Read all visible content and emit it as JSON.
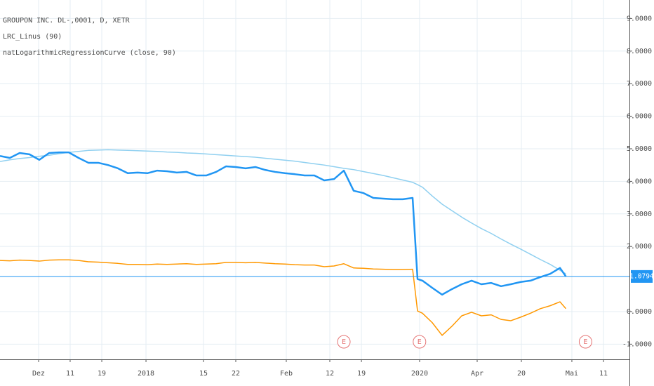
{
  "chart_data": {
    "type": "line",
    "title": "GROUPON INC. DL-,0001, D, XETR",
    "indicators": [
      "LRC_Linus (90)",
      "natLogarithmicRegressionCurve (close, 90)"
    ],
    "x": [
      0,
      1,
      2,
      3,
      4,
      5,
      6,
      7,
      8,
      9,
      10,
      11,
      12,
      13,
      14,
      15,
      16,
      17,
      18,
      19,
      20,
      21,
      22,
      23,
      24,
      25,
      26,
      27,
      28,
      29,
      30,
      31,
      32,
      33,
      34,
      35,
      36,
      37,
      38,
      39,
      40,
      41,
      42,
      42.5,
      43,
      44,
      45,
      46,
      47,
      48,
      49,
      50,
      51,
      52,
      53,
      54,
      55,
      56,
      57,
      57.6
    ],
    "series": [
      {
        "color": "#90d0f0",
        "width": 1.5,
        "values": [
          4.61,
          4.66,
          4.7,
          4.73,
          4.77,
          4.8,
          4.85,
          4.89,
          4.92,
          4.95,
          4.96,
          4.97,
          4.96,
          4.95,
          4.94,
          4.93,
          4.92,
          4.9,
          4.89,
          4.87,
          4.86,
          4.84,
          4.82,
          4.8,
          4.78,
          4.76,
          4.74,
          4.71,
          4.68,
          4.65,
          4.62,
          4.58,
          4.54,
          4.5,
          4.45,
          4.4,
          4.36,
          4.3,
          4.24,
          4.18,
          4.11,
          4.04,
          3.97,
          3.9,
          3.82,
          3.55,
          3.3,
          3.1,
          2.9,
          2.72,
          2.55,
          2.4,
          2.23,
          2.07,
          1.92,
          1.76,
          1.6,
          1.45,
          1.27,
          1.16
        ]
      },
      {
        "color": "#ff9800",
        "width": 1.5,
        "values": [
          1.57,
          1.56,
          1.58,
          1.57,
          1.55,
          1.58,
          1.59,
          1.59,
          1.57,
          1.53,
          1.52,
          1.5,
          1.48,
          1.45,
          1.45,
          1.44,
          1.46,
          1.45,
          1.46,
          1.47,
          1.45,
          1.46,
          1.47,
          1.51,
          1.51,
          1.5,
          1.51,
          1.49,
          1.47,
          1.46,
          1.44,
          1.43,
          1.43,
          1.38,
          1.4,
          1.47,
          1.34,
          1.33,
          1.31,
          1.3,
          1.29,
          1.29,
          1.3,
          0.02,
          -0.05,
          -0.34,
          -0.73,
          -0.45,
          -0.13,
          -0.02,
          -0.13,
          -0.1,
          -0.24,
          -0.28,
          -0.17,
          -0.05,
          0.09,
          0.18,
          0.3,
          0.09
        ]
      },
      {
        "color": "#2196f3",
        "width": 2.5,
        "values": [
          4.78,
          4.72,
          4.87,
          4.83,
          4.66,
          4.87,
          4.89,
          4.89,
          4.72,
          4.57,
          4.57,
          4.5,
          4.4,
          4.25,
          4.27,
          4.25,
          4.33,
          4.31,
          4.27,
          4.29,
          4.18,
          4.18,
          4.29,
          4.46,
          4.44,
          4.4,
          4.44,
          4.35,
          4.29,
          4.25,
          4.22,
          4.18,
          4.18,
          4.03,
          4.07,
          4.33,
          3.71,
          3.64,
          3.49,
          3.47,
          3.45,
          3.45,
          3.49,
          1.0,
          0.95,
          0.73,
          0.52,
          0.69,
          0.84,
          0.95,
          0.84,
          0.88,
          0.78,
          0.84,
          0.91,
          0.95,
          1.06,
          1.16,
          1.34,
          1.08
        ]
      }
    ],
    "last_value": 1.0794,
    "last_color": "#2196f3",
    "earnings": [
      {
        "label": "E",
        "x": 35
      },
      {
        "label": "E",
        "x": 42.7
      },
      {
        "label": "E",
        "x": 59.6
      }
    ],
    "xlim": [
      0,
      64.07
    ],
    "ylim": [
      -1.466,
      9.569
    ],
    "yticks": [
      {
        "value": -1,
        "label": "-1.0000"
      },
      {
        "value": 0,
        "label": "0.0000"
      },
      {
        "value": 2,
        "label": "2.0000"
      },
      {
        "value": 3,
        "label": "3.0000"
      },
      {
        "value": 4,
        "label": "4.0000"
      },
      {
        "value": 5,
        "label": "5.0000"
      },
      {
        "value": 6,
        "label": "6.0000"
      },
      {
        "value": 7,
        "label": "7.0000"
      },
      {
        "value": 8,
        "label": "8.0000"
      },
      {
        "value": 9,
        "label": "9.0000"
      }
    ],
    "xticks": [
      {
        "value": 3.93,
        "label": "Dez"
      },
      {
        "value": 7.14,
        "label": "11"
      },
      {
        "value": 10.36,
        "label": "19"
      },
      {
        "value": 14.86,
        "label": "2018"
      },
      {
        "value": 20.71,
        "label": "15"
      },
      {
        "value": 24,
        "label": "22"
      },
      {
        "value": 29.14,
        "label": "Feb"
      },
      {
        "value": 33.57,
        "label": "12"
      },
      {
        "value": 36.79,
        "label": "19"
      },
      {
        "value": 42.71,
        "label": "2020"
      },
      {
        "value": 48.57,
        "label": "Apr"
      },
      {
        "value": 53.07,
        "label": "20"
      },
      {
        "value": 58.21,
        "label": "Mai"
      },
      {
        "value": 61.43,
        "label": "11"
      }
    ],
    "grid": true
  }
}
